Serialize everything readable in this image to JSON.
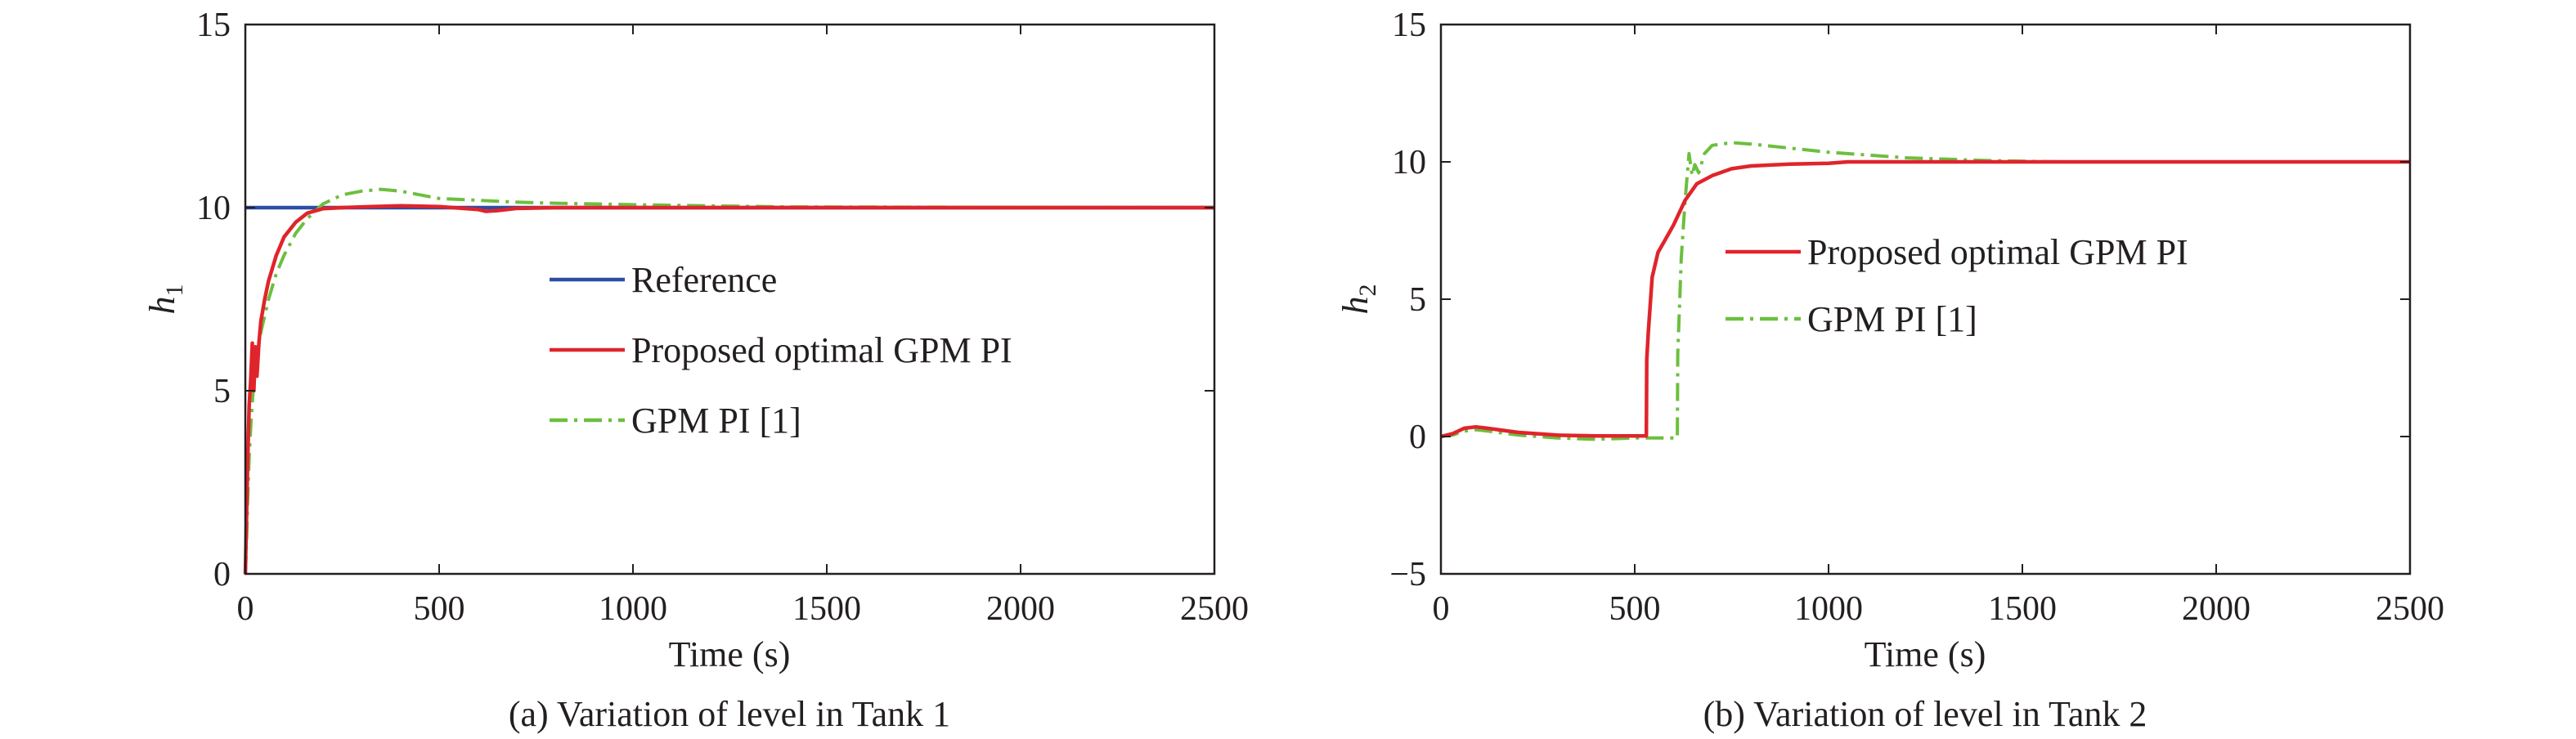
{
  "chart_data": [
    {
      "type": "line",
      "caption": "(a) Variation of level in Tank 1",
      "xlabel": "Time (s)",
      "ylabel_main": "h",
      "ylabel_sub": "1",
      "xlim": [
        0,
        2500
      ],
      "ylim": [
        0,
        15
      ],
      "xticks": [
        0,
        500,
        1000,
        1500,
        2000,
        2500
      ],
      "yticks": [
        0,
        5,
        10,
        15
      ],
      "grid": false,
      "legend_position": "center-right",
      "series": [
        {
          "name": "Reference",
          "color": "#2a4ea3",
          "style": "solid",
          "x": [
            0,
            2500
          ],
          "y": [
            10,
            10
          ]
        },
        {
          "name": "Proposed optimal GPM PI",
          "color": "#e0242b",
          "style": "solid",
          "x": [
            0,
            3,
            6,
            10,
            14,
            18,
            22,
            26,
            30,
            35,
            40,
            50,
            60,
            80,
            100,
            130,
            160,
            200,
            250,
            300,
            400,
            500,
            600,
            620,
            650,
            700,
            800,
            1000,
            1500,
            2000,
            2500
          ],
          "y": [
            0,
            1.5,
            3.0,
            4.6,
            5.3,
            6.3,
            5.0,
            6.2,
            5.4,
            6.3,
            6.9,
            7.5,
            8.0,
            8.7,
            9.2,
            9.6,
            9.85,
            9.97,
            10.0,
            10.02,
            10.05,
            10.03,
            9.95,
            9.9,
            9.92,
            9.98,
            10.0,
            10.0,
            10.0,
            10.0,
            10.0
          ]
        },
        {
          "name": "GPM PI [1]",
          "color": "#6cbf3e",
          "style": "dashdot",
          "x": [
            0,
            3,
            6,
            10,
            15,
            20,
            30,
            40,
            60,
            80,
            100,
            130,
            160,
            200,
            250,
            300,
            350,
            400,
            450,
            500,
            600,
            700,
            800,
            1000,
            1200,
            1400,
            2500
          ],
          "y": [
            0,
            0.8,
            2.0,
            3.2,
            4.2,
            5.0,
            6.0,
            6.6,
            7.5,
            8.2,
            8.7,
            9.3,
            9.7,
            10.1,
            10.35,
            10.45,
            10.5,
            10.45,
            10.35,
            10.25,
            10.2,
            10.15,
            10.12,
            10.08,
            10.05,
            10.02,
            10.0
          ]
        }
      ]
    },
    {
      "type": "line",
      "caption": "(b) Variation of level in Tank 2",
      "xlabel": "Time (s)",
      "ylabel_main": "h",
      "ylabel_sub": "2",
      "xlim": [
        0,
        2500
      ],
      "ylim": [
        -5,
        15
      ],
      "xticks": [
        0,
        500,
        1000,
        1500,
        2000,
        2500
      ],
      "yticks": [
        -5,
        0,
        5,
        10,
        15
      ],
      "ytick_labels": [
        "−5",
        "0",
        "5",
        "10",
        "15"
      ],
      "grid": false,
      "legend_position": "center-right",
      "series": [
        {
          "name": "Proposed optimal GPM PI",
          "color": "#e0242b",
          "style": "solid",
          "x": [
            0,
            30,
            60,
            90,
            120,
            200,
            300,
            400,
            530,
            531,
            535,
            545,
            560,
            580,
            600,
            630,
            660,
            700,
            750,
            800,
            900,
            1000,
            1050,
            1500,
            2000,
            2500
          ],
          "y": [
            0,
            0.1,
            0.3,
            0.35,
            0.3,
            0.15,
            0.05,
            0.02,
            0.02,
            2.8,
            3.8,
            5.8,
            6.7,
            7.2,
            7.7,
            8.6,
            9.2,
            9.5,
            9.75,
            9.85,
            9.92,
            9.95,
            10.0,
            10.0,
            10.0,
            10.0
          ]
        },
        {
          "name": "GPM PI [1]",
          "color": "#6cbf3e",
          "style": "dashdot",
          "x": [
            0,
            30,
            60,
            90,
            120,
            200,
            300,
            400,
            500,
            610,
            611,
            620,
            630,
            640,
            648,
            655,
            665,
            680,
            700,
            750,
            800,
            900,
            1000,
            1100,
            1200,
            1400,
            1600,
            2500
          ],
          "y": [
            0,
            0.05,
            0.2,
            0.25,
            0.2,
            0.05,
            -0.05,
            -0.1,
            -0.05,
            -0.05,
            3.0,
            6.5,
            8.6,
            10.3,
            9.5,
            9.9,
            9.6,
            10.3,
            10.6,
            10.7,
            10.65,
            10.5,
            10.35,
            10.25,
            10.15,
            10.05,
            10.0,
            10.0
          ]
        }
      ]
    }
  ]
}
